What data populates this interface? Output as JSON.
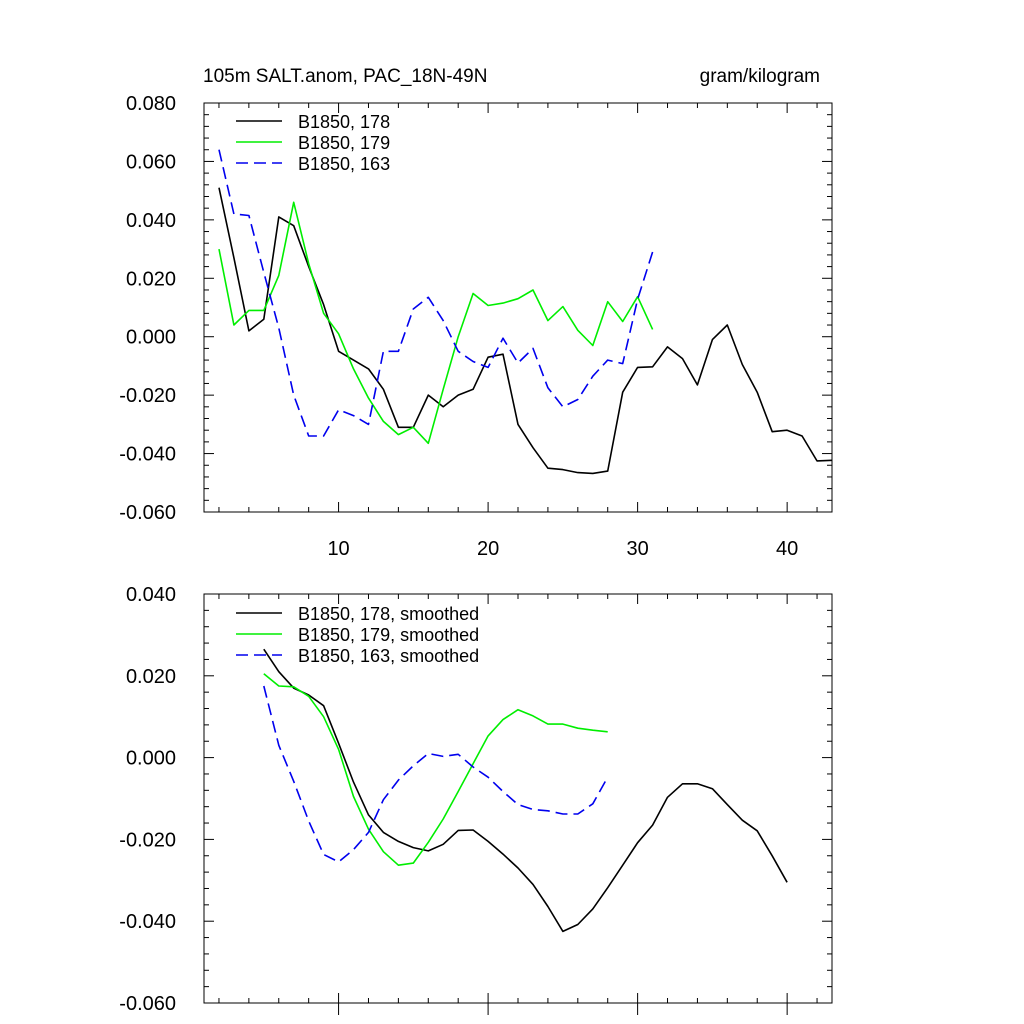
{
  "chart_data": [
    {
      "type": "line",
      "title_left": "105m SALT.anom, PAC_18N-49N",
      "title_right": "gram/kilogram",
      "xlabel": "",
      "ylabel": "",
      "xlim": [
        1,
        43
      ],
      "ylim": [
        -0.06,
        0.08
      ],
      "yticks": [
        "0.080",
        "0.060",
        "0.040",
        "0.020",
        "0.000",
        "-0.020",
        "-0.040",
        "-0.060"
      ],
      "xticks": [
        "10",
        "20",
        "30",
        "40"
      ],
      "legend_position": "top-left",
      "series": [
        {
          "name": "B1850, 178",
          "color": "#000000",
          "dash": "",
          "x_start": 2,
          "values": [
            0.051,
            0.027,
            0.002,
            0.006,
            0.041,
            0.038,
            0.024,
            0.011,
            -0.005,
            -0.008,
            -0.011,
            -0.018,
            -0.031,
            -0.031,
            -0.02,
            -0.024,
            -0.02,
            -0.018,
            -0.007,
            -0.006,
            -0.03,
            -0.038,
            -0.045,
            -0.0455,
            -0.0465,
            -0.0468,
            -0.046,
            -0.019,
            -0.0105,
            -0.0103,
            -0.0035,
            -0.0075,
            -0.0165,
            -0.001,
            0.004,
            -0.0095,
            -0.019,
            -0.0325,
            -0.032,
            -0.034,
            -0.0425,
            -0.0423
          ]
        },
        {
          "name": "B1850, 179",
          "color": "#00ee00",
          "dash": "",
          "x_start": 2,
          "values": [
            0.03,
            0.004,
            0.009,
            0.009,
            0.021,
            0.046,
            0.025,
            0.008,
            0.001,
            -0.011,
            -0.021,
            -0.029,
            -0.0335,
            -0.031,
            -0.0365,
            -0.018,
            0.0,
            0.0148,
            0.0107,
            0.0115,
            0.013,
            0.016,
            0.0055,
            0.0103,
            0.0022,
            -0.003,
            0.012,
            0.0052,
            0.0137,
            0.0025
          ]
        },
        {
          "name": "B1850, 163",
          "color": "#0000ee",
          "dash": "12,6",
          "x_start": 2,
          "values": [
            0.064,
            0.042,
            0.0415,
            0.022,
            0.003,
            -0.02,
            -0.034,
            -0.034,
            -0.025,
            -0.027,
            -0.03,
            -0.005,
            -0.005,
            0.0095,
            0.0135,
            0.0055,
            -0.005,
            -0.0085,
            -0.0105,
            -0.0005,
            -0.009,
            -0.004,
            -0.0175,
            -0.024,
            -0.0215,
            -0.0135,
            -0.008,
            -0.0092,
            0.0128,
            0.029
          ]
        }
      ]
    },
    {
      "type": "line",
      "xlabel": "",
      "ylabel": "",
      "xlim": [
        1,
        43
      ],
      "ylim": [
        -0.06,
        0.04
      ],
      "yticks": [
        "0.040",
        "0.020",
        "0.000",
        "-0.020",
        "-0.040",
        "-0.060"
      ],
      "legend_position": "top-left",
      "series": [
        {
          "name": "B1850, 178, smoothed",
          "color": "#000000",
          "dash": "",
          "x_start": 5,
          "values": [
            0.0265,
            0.021,
            0.017,
            0.0153,
            0.0127,
            0.0035,
            -0.006,
            -0.014,
            -0.0183,
            -0.0205,
            -0.022,
            -0.0228,
            -0.0212,
            -0.0178,
            -0.0177,
            -0.0205,
            -0.0236,
            -0.027,
            -0.031,
            -0.0364,
            -0.0425,
            -0.0408,
            -0.037,
            -0.0318,
            -0.0263,
            -0.0208,
            -0.0165,
            -0.0097,
            -0.0064,
            -0.0064,
            -0.0076,
            -0.0115,
            -0.0153,
            -0.0179,
            -0.024,
            -0.0305
          ]
        },
        {
          "name": "B1850, 179, smoothed",
          "color": "#00ee00",
          "dash": "",
          "x_start": 5,
          "values": [
            0.0205,
            0.0175,
            0.0173,
            0.015,
            0.01,
            0.002,
            -0.0095,
            -0.0175,
            -0.023,
            -0.0263,
            -0.0258,
            -0.0207,
            -0.015,
            -0.0083,
            -0.0015,
            0.0053,
            0.0093,
            0.0117,
            0.0102,
            0.0082,
            0.0082,
            0.0072,
            0.0067,
            0.0063
          ]
        },
        {
          "name": "B1850, 163, smoothed",
          "color": "#0000ee",
          "dash": "12,6",
          "x_start": 5,
          "values": [
            0.0175,
            0.003,
            -0.0058,
            -0.0155,
            -0.0237,
            -0.0255,
            -0.0225,
            -0.0183,
            -0.0103,
            -0.0055,
            -0.002,
            0.001,
            0.0003,
            0.0008,
            -0.0023,
            -0.0048,
            -0.0083,
            -0.0115,
            -0.0127,
            -0.013,
            -0.0138,
            -0.0138,
            -0.0113,
            -0.0048
          ]
        }
      ]
    }
  ]
}
